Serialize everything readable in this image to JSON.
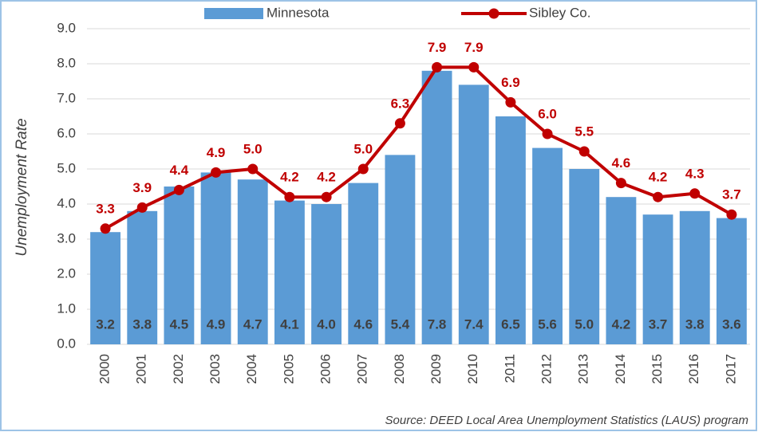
{
  "chart_data": {
    "type": "bar",
    "ylabel": "Unemployment Rate",
    "source": "Source: DEED Local Area Unemployment Statistics (LAUS) program",
    "categories": [
      "2000",
      "2001",
      "2002",
      "2003",
      "2004",
      "2005",
      "2006",
      "2007",
      "2008",
      "2009",
      "2010",
      "2011",
      "2012",
      "2013",
      "2014",
      "2015",
      "2016",
      "2017"
    ],
    "series": [
      {
        "name": "Minnesota",
        "type": "bar",
        "color": "#5b9bd5",
        "values": [
          3.2,
          3.8,
          4.5,
          4.9,
          4.7,
          4.1,
          4.0,
          4.6,
          5.4,
          7.8,
          7.4,
          6.5,
          5.6,
          5.0,
          4.2,
          3.7,
          3.8,
          3.6
        ],
        "value_labels": [
          "3.2",
          "3.8",
          "4.5",
          "4.9",
          "4.7",
          "4.1",
          "4.0",
          "4.6",
          "5.4",
          "7.8",
          "7.4",
          "6.5",
          "5.6",
          "5.0",
          "4.2",
          "3.7",
          "3.8",
          "3.6"
        ]
      },
      {
        "name": "Sibley Co.",
        "type": "line",
        "color": "#c00000",
        "values": [
          3.3,
          3.9,
          4.4,
          4.9,
          5.0,
          4.2,
          4.2,
          5.0,
          6.3,
          7.9,
          7.9,
          6.9,
          6.0,
          5.5,
          4.6,
          4.2,
          4.3,
          3.7
        ],
        "value_labels": [
          "3.3",
          "3.9",
          "4.4",
          "4.9",
          "5.0",
          "4.2",
          "4.2",
          "5.0",
          "6.3",
          "7.9",
          "7.9",
          "6.9",
          "6.0",
          "5.5",
          "4.6",
          "4.2",
          "4.3",
          "3.7"
        ]
      }
    ],
    "ylim": [
      0,
      9
    ],
    "yticks": [
      {
        "value": 0,
        "label": "0.0"
      },
      {
        "value": 1,
        "label": "1.0"
      },
      {
        "value": 2,
        "label": "2.0"
      },
      {
        "value": 3,
        "label": "3.0"
      },
      {
        "value": 4,
        "label": "4.0"
      },
      {
        "value": 5,
        "label": "5.0"
      },
      {
        "value": 6,
        "label": "6.0"
      },
      {
        "value": 7,
        "label": "7.0"
      },
      {
        "value": 8,
        "label": "8.0"
      },
      {
        "value": 9,
        "label": "9.0"
      }
    ],
    "grid": true,
    "legend": "top"
  }
}
